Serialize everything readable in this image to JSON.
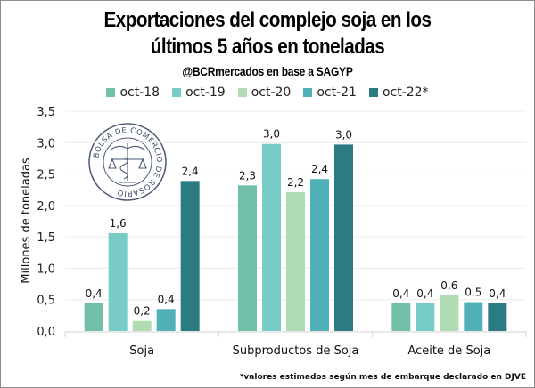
{
  "chart_data": {
    "type": "bar",
    "title": "Exportaciones del complejo soja en los",
    "title_line2": "últimos 5 años en toneladas",
    "subtitle": "@BCRmercados en base a SAGYP",
    "xlabel": "",
    "ylabel": "Millones de toneladas",
    "ylim": [
      0,
      3.5
    ],
    "yticks": [
      "0,0",
      "0,5",
      "1,0",
      "1,5",
      "2,0",
      "2,5",
      "3,0",
      "3,5"
    ],
    "ytick_values": [
      0,
      0.5,
      1.0,
      1.5,
      2.0,
      2.5,
      3.0,
      3.5
    ],
    "grid": true,
    "legend_position": "top",
    "categories": [
      "Soja",
      "Subproductos de Soja",
      "Aceite de Soja"
    ],
    "series": [
      {
        "name": "oct-18",
        "color": "#72bfaa",
        "values": [
          0.44,
          2.32,
          0.44
        ],
        "labels": [
          "0,4",
          "2,3",
          "0,4"
        ]
      },
      {
        "name": "oct-19",
        "color": "#77cdc6",
        "values": [
          1.56,
          2.98,
          0.44
        ],
        "labels": [
          "1,6",
          "3,0",
          "0,4"
        ]
      },
      {
        "name": "oct-20",
        "color": "#b0dcb4",
        "values": [
          0.16,
          2.21,
          0.57
        ],
        "labels": [
          "0,2",
          "2,2",
          "0,6"
        ]
      },
      {
        "name": "oct-21",
        "color": "#52b0b8",
        "values": [
          0.35,
          2.42,
          0.46
        ],
        "labels": [
          "0,4",
          "2,4",
          "0,5"
        ]
      },
      {
        "name": "oct-22*",
        "color": "#2a7c82",
        "values": [
          2.39,
          2.97,
          0.44
        ],
        "labels": [
          "2,4",
          "3,0",
          "0,4"
        ]
      }
    ],
    "footnote": "*valores estimados según mes de embarque declarado en DJVE",
    "watermark": "BOLSA DE COMERCIO DE ROSARIO"
  }
}
